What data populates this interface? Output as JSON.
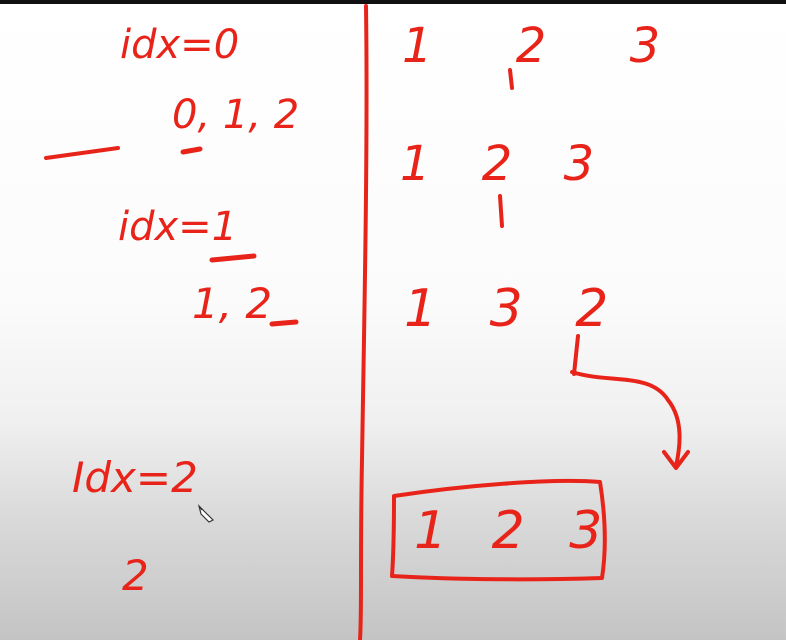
{
  "whiteboard": {
    "left": {
      "idx0_label": "idx=0",
      "idx0_values": "0, 1, 2",
      "idx1_label": "idx=1",
      "idx1_values": "1, 2",
      "idx2_label": "Idx=2",
      "idx2_values": "2"
    },
    "right": {
      "row1": "1 2 3",
      "row2": "1 2 3",
      "row3": "1 3 2",
      "boxed_result": "1 2 3"
    },
    "ink_color": "#e8241a"
  }
}
